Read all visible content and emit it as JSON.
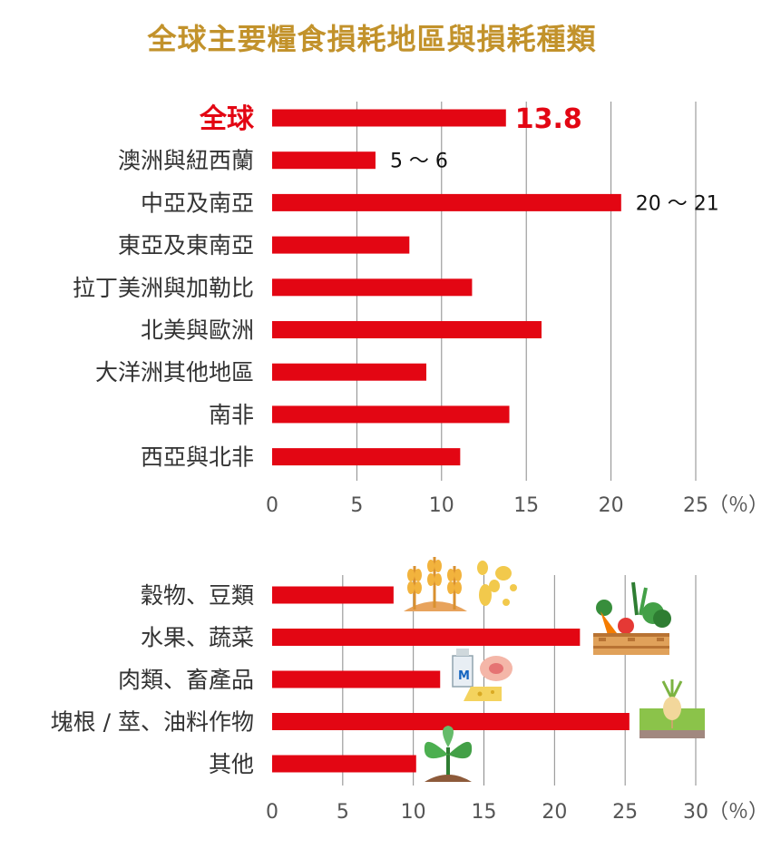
{
  "title": "全球主要糧食損耗地區與損耗種類",
  "colors": {
    "bar": "#e30613",
    "title": "#c2922b",
    "highlight": "#e30613",
    "grid": "#8a8a8a"
  },
  "chart_data": [
    {
      "type": "bar",
      "orientation": "horizontal",
      "categories": [
        "全球",
        "澳洲與紐西蘭",
        "中亞及南亞",
        "東亞及東南亞",
        "拉丁美洲與加勒比",
        "北美與歐洲",
        "大洋洲其他地區",
        "南非",
        "西亞與北非"
      ],
      "values": [
        13.8,
        6.1,
        20.6,
        8.1,
        11.8,
        15.9,
        9.1,
        14.0,
        11.1
      ],
      "highlight_index": 0,
      "data_labels": [
        "13.8",
        "5 ～ 6",
        "20 ～ 21",
        "",
        "",
        "",
        "",
        "",
        ""
      ],
      "xlim": [
        0,
        25
      ],
      "ticks": [
        "0",
        "5",
        "10",
        "15",
        "20",
        "25"
      ],
      "unit": "（％）",
      "grid": true,
      "title": "",
      "xlabel": "",
      "ylabel": ""
    },
    {
      "type": "bar",
      "orientation": "horizontal",
      "categories": [
        "穀物、豆類",
        "水果、蔬菜",
        "肉類、畜產品",
        "塊根 / 莖、油料作物",
        "其他"
      ],
      "values": [
        8.6,
        21.8,
        11.9,
        25.3,
        10.2
      ],
      "icons": [
        "wheat-grain-icon",
        "vegetable-crate-icon",
        "dairy-meat-icon",
        "root-sprout-icon",
        "seedling-icon"
      ],
      "xlim": [
        0,
        30
      ],
      "ticks": [
        "0",
        "5",
        "10",
        "15",
        "20",
        "25",
        "30"
      ],
      "unit": "（％）",
      "grid": true,
      "title": "",
      "xlabel": "",
      "ylabel": ""
    }
  ]
}
